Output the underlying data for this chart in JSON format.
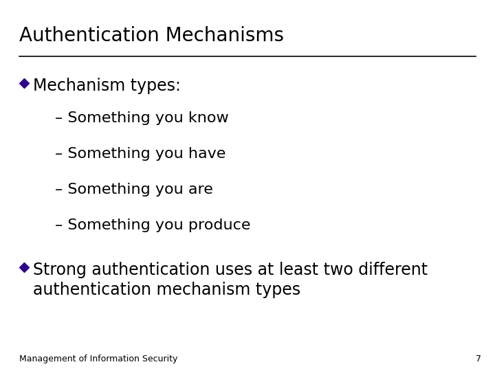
{
  "title": "Authentication Mechanisms",
  "background_color": "#ffffff",
  "title_color": "#000000",
  "title_fontsize": 20,
  "title_bold": false,
  "line_color": "#000000",
  "bullet_color": "#2e008b",
  "bullet1_text": "Mechanism types:",
  "bullet1_fontsize": 17,
  "sub_bullets": [
    "– Something you know",
    "– Something you have",
    "– Something you are",
    "– Something you produce"
  ],
  "sub_bullet_fontsize": 16,
  "sub_bullet_color": "#000000",
  "bullet2_line1": "Strong authentication uses at least two different",
  "bullet2_line2": "authentication mechanism types",
  "bullet2_fontsize": 17,
  "footer_text": "Management of Information Security",
  "footer_fontsize": 9,
  "page_number": "7"
}
